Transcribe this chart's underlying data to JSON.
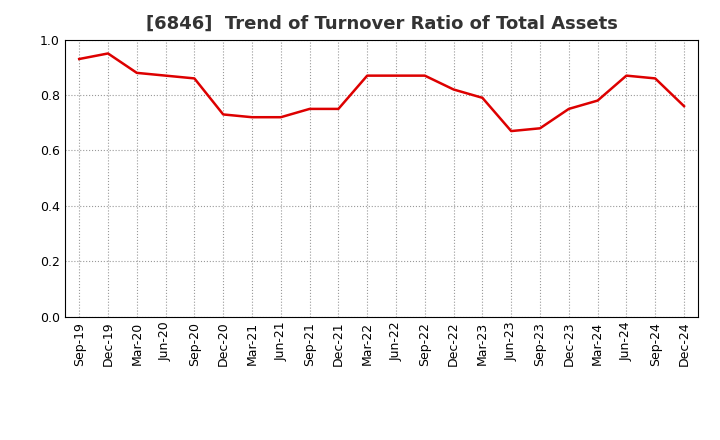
{
  "title": "[6846]  Trend of Turnover Ratio of Total Assets",
  "x_labels": [
    "Sep-19",
    "Dec-19",
    "Mar-20",
    "Jun-20",
    "Sep-20",
    "Dec-20",
    "Mar-21",
    "Jun-21",
    "Sep-21",
    "Dec-21",
    "Mar-22",
    "Jun-22",
    "Sep-22",
    "Dec-22",
    "Mar-23",
    "Jun-23",
    "Sep-23",
    "Dec-23",
    "Mar-24",
    "Jun-24",
    "Sep-24",
    "Dec-24"
  ],
  "y_values": [
    0.93,
    0.95,
    0.88,
    0.87,
    0.86,
    0.73,
    0.72,
    0.72,
    0.75,
    0.75,
    0.87,
    0.87,
    0.87,
    0.82,
    0.79,
    0.67,
    0.68,
    0.75,
    0.78,
    0.87,
    0.86,
    0.76
  ],
  "line_color": "#dd0000",
  "line_width": 1.8,
  "ylim": [
    0.0,
    1.0
  ],
  "yticks": [
    0.0,
    0.2,
    0.4,
    0.6,
    0.8,
    1.0
  ],
  "background_color": "#ffffff",
  "plot_bg_color": "#ffffff",
  "grid_color": "#999999",
  "title_fontsize": 13,
  "tick_fontsize": 9,
  "title_color": "#333333",
  "title_fontweight": "bold"
}
